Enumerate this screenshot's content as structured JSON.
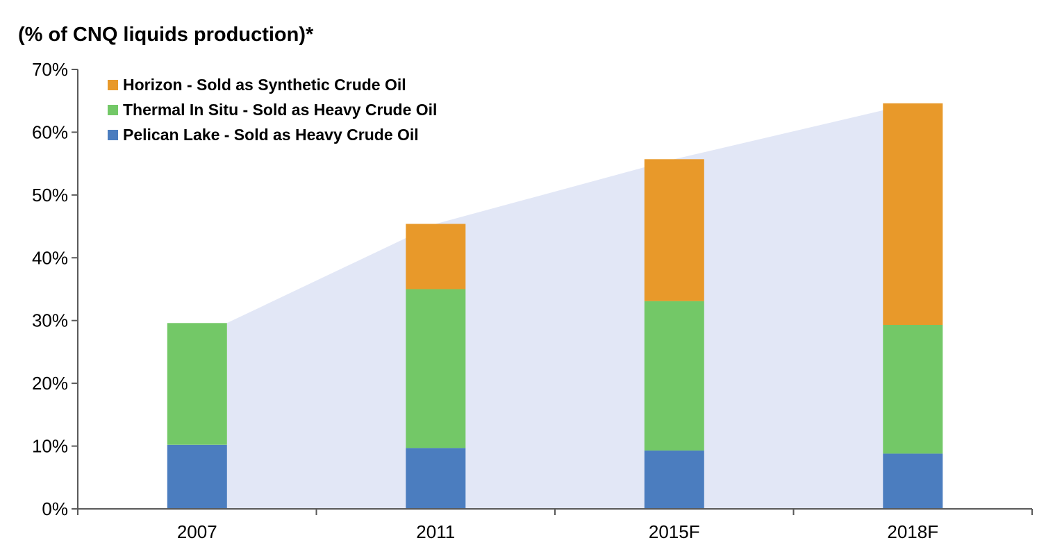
{
  "title": "(% of CNQ liquids production)*",
  "chart_data": {
    "type": "bar",
    "subtype": "stacked-columns-with-total-area-backdrop",
    "title": "(% of CNQ liquids production)*",
    "categories": [
      "2007",
      "2011",
      "2015F",
      "2018F"
    ],
    "series": [
      {
        "name": "Pelican Lake - Sold as Heavy Crude Oil",
        "color": "#4B7DBF",
        "values": [
          10.2,
          9.7,
          9.3,
          8.8
        ]
      },
      {
        "name": "Thermal In Situ - Sold as Heavy Crude Oil",
        "color": "#73C867",
        "values": [
          19.4,
          25.3,
          23.8,
          20.5
        ]
      },
      {
        "name": "Horizon - Sold as Synthetic Crude Oil",
        "color": "#E8992A",
        "values": [
          0,
          10.4,
          22.6,
          35.3
        ]
      }
    ],
    "stack_totals": [
      29.6,
      45.4,
      55.7,
      64.6
    ],
    "area_backdrop": {
      "color": "#E2E7F6",
      "values": [
        29.6,
        45.4,
        55.7,
        64.6
      ]
    },
    "legend_order_top_to_bottom": [
      "Horizon - Sold as Synthetic Crude Oil",
      "Thermal In Situ - Sold as Heavy Crude Oil",
      "Pelican Lake - Sold as Heavy Crude Oil"
    ],
    "legend_position": "inside-top-left",
    "xlabel": "",
    "ylabel": "",
    "ylim": [
      0,
      70
    ],
    "ytick_step": 10,
    "ytick_labels": [
      "0%",
      "10%",
      "20%",
      "30%",
      "40%",
      "50%",
      "60%",
      "70%"
    ],
    "grid": false,
    "axis_color": "#595959",
    "text_color": "#000000"
  }
}
